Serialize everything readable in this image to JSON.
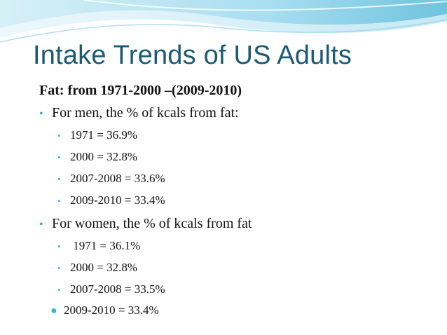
{
  "slide": {
    "title": "Intake Trends of US Adults",
    "subtitle": "Fat: from 1971-2000 –(2009-2010)",
    "men": {
      "label": "For men, the % of kcals from fat:",
      "items": [
        "1971 = 36.9%",
        "2000 = 32.8%",
        "2007-2008 = 33.6%",
        "2009-2010 = 33.4%"
      ]
    },
    "women": {
      "label": "For women, the % of kcals from fat",
      "items": [
        " 1971 = 36.1%",
        "2000 = 32.8%",
        "2007-2008 = 33.5%",
        "2009-2010 = 33.4%"
      ]
    },
    "colors": {
      "title": "#1a5a73",
      "bullet": "#3aa9c9",
      "wave_light": "#bfe4f1",
      "wave_mid": "#7fcbe4"
    }
  }
}
